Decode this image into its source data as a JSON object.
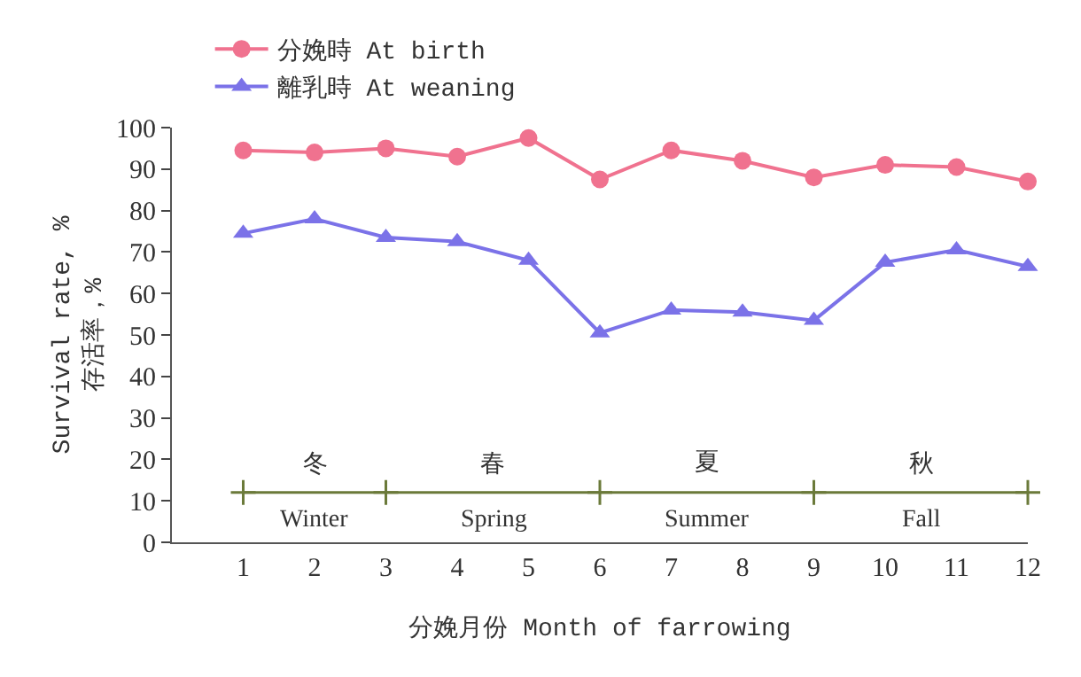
{
  "chart_data": {
    "type": "line",
    "xlabel": "分娩月份 Month of farrowing",
    "ylabel": "Survival rate, %\n存活率，%",
    "x": [
      1,
      2,
      3,
      4,
      5,
      6,
      7,
      8,
      9,
      10,
      11,
      12
    ],
    "series": [
      {
        "name": "分娩時 At birth",
        "color": "#f0728f",
        "marker": "circle",
        "values": [
          94.5,
          94,
          95,
          93,
          97.5,
          87.5,
          94.5,
          92,
          88,
          91,
          90.5,
          87
        ]
      },
      {
        "name": "離乳時 At weaning",
        "color": "#7b72e8",
        "marker": "triangle",
        "values": [
          74.5,
          78,
          73.5,
          72.5,
          68,
          50.5,
          56,
          55.5,
          53.5,
          67.5,
          70.5,
          66.5
        ]
      },
      {
        "color": "#6b7a3a",
        "marker": "cross",
        "x": [
          1,
          3,
          6,
          9,
          12
        ],
        "values": [
          12,
          12,
          12,
          12,
          12
        ]
      }
    ],
    "xlim": [
      0,
      12
    ],
    "xticks": [
      1,
      2,
      3,
      4,
      5,
      6,
      7,
      8,
      9,
      10,
      11,
      12
    ],
    "ylim": [
      0,
      100
    ],
    "yticks": [
      0,
      10,
      20,
      30,
      40,
      50,
      60,
      70,
      80,
      90,
      100
    ],
    "annotations": [
      {
        "text": "冬",
        "x": 2,
        "y": 12
      },
      {
        "text": "Winter",
        "x": 2,
        "y": 12
      },
      {
        "text": "春",
        "x": 4.5,
        "y": 12
      },
      {
        "text": "Spring",
        "x": 4.5,
        "y": 12
      },
      {
        "text": "夏",
        "x": 7.5,
        "y": 12
      },
      {
        "text": "Summer",
        "x": 7.5,
        "y": 12
      },
      {
        "text": "秋",
        "x": 10.5,
        "y": 12
      },
      {
        "text": "Fall",
        "x": 10.5,
        "y": 12
      }
    ],
    "grid": false,
    "legend": "top left",
    "line_style": "solid"
  }
}
